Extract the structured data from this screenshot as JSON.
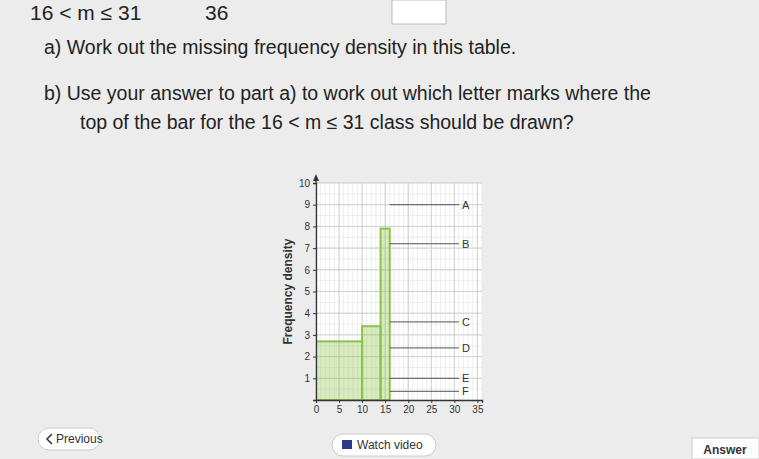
{
  "page": {
    "header": {
      "class": "16 < m ≤ 31",
      "frequency": "36"
    },
    "questions": [
      "a) Work out the missing frequency density in this table.",
      "b) Use your answer to part a) to work out which letter marks where the",
      "top of the bar for the 16 < m ≤ 31 class should be drawn?"
    ],
    "buttons": [
      "Previous",
      "Watch video",
      "Answer"
    ]
  },
  "chart_data": {
    "type": "histogram",
    "y_label": "Frequency density",
    "bins": [
      0,
      10,
      14,
      16
    ],
    "values": [
      2.7,
      3.4,
      7.9
    ],
    "color": "#8bc34a",
    "xlim": [
      0,
      36
    ],
    "ylim": [
      0,
      10
    ],
    "xticks": [
      0,
      5,
      10,
      15,
      20,
      25,
      30,
      35
    ],
    "yticks": [
      1,
      2,
      3,
      4,
      5,
      6,
      7,
      8,
      9,
      10
    ],
    "grid": true,
    "annotations": [
      {
        "label": "A",
        "y": 9,
        "x": [
          16,
          31
        ]
      },
      {
        "label": "B",
        "y": 7.2,
        "x": [
          16,
          31
        ]
      },
      {
        "label": "C",
        "y": 3.6,
        "x": [
          16,
          31
        ]
      },
      {
        "label": "D",
        "y": 2.4,
        "x": [
          16,
          31
        ]
      },
      {
        "label": "E",
        "y": 1,
        "x": [
          16,
          31
        ]
      },
      {
        "label": "F",
        "y": 0.4,
        "x": [
          16,
          31
        ]
      }
    ]
  }
}
